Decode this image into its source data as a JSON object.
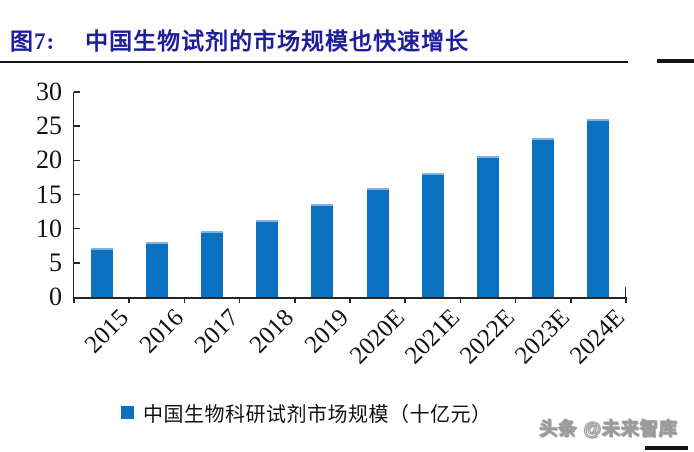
{
  "figure": {
    "label": "图7:",
    "title": "中国生物试剂的市场规模也快速增长"
  },
  "chart_data": {
    "type": "bar",
    "title": "图7: 中国生物试剂的市场规模也快速增长",
    "categories": [
      "2015",
      "2016",
      "2017",
      "2018",
      "2019",
      "2020E",
      "2021E",
      "2022E",
      "2023E",
      "2024E"
    ],
    "values": [
      7.2,
      8.1,
      9.7,
      11.2,
      13.6,
      15.9,
      18.2,
      20.6,
      23.3,
      26.0
    ],
    "series_name": "中国生物科研试剂市场规模（十亿元）",
    "xlabel": "",
    "ylabel": "",
    "ylim": [
      0,
      30
    ],
    "yticks": [
      0,
      5,
      10,
      15,
      20,
      25,
      30
    ],
    "grid": false,
    "legend_position": "bottom",
    "bar_color": "#0a72c0",
    "bar_edge_color": "#7db3e2"
  },
  "legend": {
    "label": "中国生物科研试剂市场规模（十亿元）"
  },
  "watermark": {
    "text": "头条 @未来智库"
  },
  "colors": {
    "title": "#1e1e9c",
    "underline": "#141414",
    "axis": "#262626",
    "bar": "#0a72c0"
  }
}
